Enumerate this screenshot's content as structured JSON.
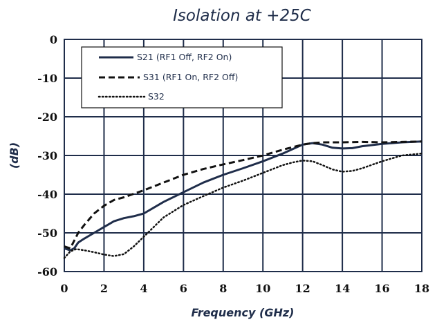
{
  "chart_data": {
    "type": "line",
    "title": "Isolation at +25C",
    "xlabel": "Frequency (GHz)",
    "ylabel": "(dB)",
    "xlim": [
      0,
      18
    ],
    "ylim": [
      -60,
      0
    ],
    "xticks": [
      0,
      2,
      4,
      6,
      8,
      10,
      12,
      14,
      16,
      18
    ],
    "yticks": [
      0,
      -10,
      -20,
      -30,
      -40,
      -50,
      -60
    ],
    "grid": true,
    "legend_position": "top-left",
    "series": [
      {
        "name": "S21 (RF1 Off, RF2 On)",
        "style": "solid",
        "color": "#1f2d4a",
        "x": [
          0,
          0.3,
          0.5,
          0.7,
          1,
          1.5,
          2,
          2.5,
          3,
          3.5,
          4,
          4.5,
          5,
          6,
          7,
          8,
          9,
          10,
          11,
          12,
          12.5,
          13,
          13.5,
          14,
          14.5,
          15,
          16,
          17,
          18
        ],
        "y": [
          -54,
          -54.5,
          -54,
          -52.5,
          -51.5,
          -50,
          -48.5,
          -47,
          -46.2,
          -45.7,
          -45,
          -43.5,
          -42,
          -39.5,
          -37,
          -35,
          -33.3,
          -31.5,
          -29.5,
          -27.2,
          -26.8,
          -27.2,
          -28,
          -28.2,
          -28.1,
          -27.6,
          -27,
          -26.6,
          -26.4
        ]
      },
      {
        "name": "S31 (RF1 On, RF2 Off)",
        "style": "dashed",
        "color": "#111111",
        "x": [
          0,
          0.3,
          0.5,
          0.7,
          1,
          1.5,
          2,
          2.5,
          3,
          4,
          5,
          6,
          7,
          8,
          9,
          10,
          11,
          12,
          12.5,
          13,
          14,
          15,
          16,
          17,
          18
        ],
        "y": [
          -53.5,
          -54,
          -52,
          -50,
          -48,
          -45,
          -43,
          -41.5,
          -40.8,
          -39,
          -37,
          -35,
          -33.5,
          -32.3,
          -31.2,
          -30,
          -28.5,
          -27.2,
          -26.8,
          -26.6,
          -26.6,
          -26.5,
          -26.6,
          -26.5,
          -26.4
        ]
      },
      {
        "name": "S32",
        "style": "dotted",
        "color": "#111111",
        "x": [
          0,
          0.3,
          0.6,
          1,
          1.5,
          2,
          2.5,
          3,
          3.5,
          4,
          4.5,
          5,
          6,
          7,
          8,
          9,
          10,
          11,
          11.5,
          12,
          12.5,
          13,
          13.5,
          14,
          14.5,
          15,
          16,
          17,
          18
        ],
        "y": [
          -56.5,
          -54.8,
          -54.2,
          -54.5,
          -55,
          -55.6,
          -56,
          -55.5,
          -53.5,
          -51,
          -48.5,
          -46,
          -42.8,
          -40.5,
          -38.3,
          -36.5,
          -34.5,
          -32.5,
          -31.8,
          -31.3,
          -31.5,
          -32.5,
          -33.6,
          -34.2,
          -34,
          -33.3,
          -31.5,
          -30,
          -29.5
        ]
      }
    ]
  }
}
